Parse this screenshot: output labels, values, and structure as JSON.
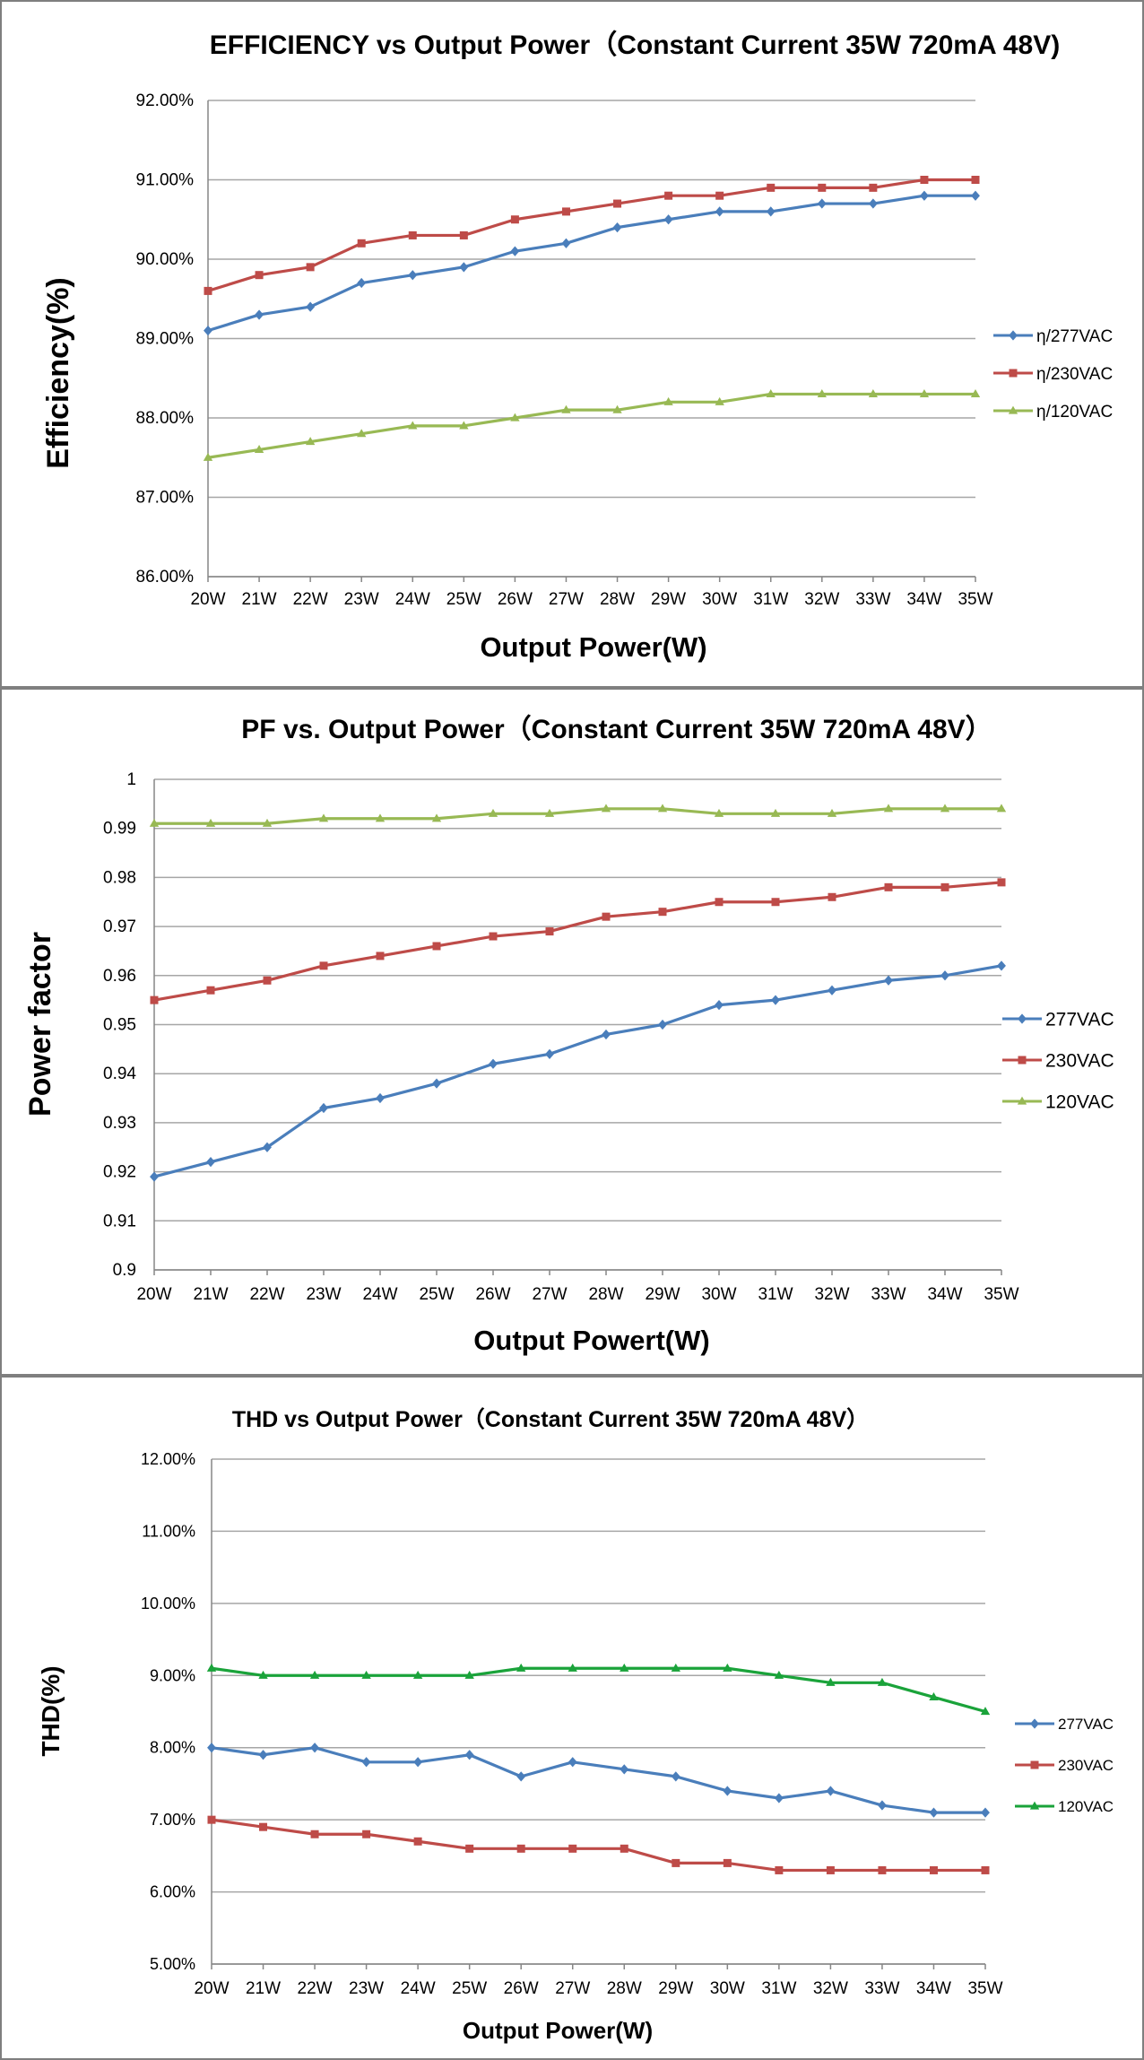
{
  "chart_data": [
    {
      "type": "line",
      "title": "EFFICIENCY vs Output Power（Constant Current 35W 720mA 48V)",
      "xlabel": "Output Power(W)",
      "ylabel": "Efficiency(%)",
      "categories": [
        "20W",
        "21W",
        "22W",
        "23W",
        "24W",
        "25W",
        "26W",
        "27W",
        "28W",
        "29W",
        "30W",
        "31W",
        "32W",
        "33W",
        "34W",
        "35W"
      ],
      "ylim": [
        86,
        92
      ],
      "yticks": [
        "86.00%",
        "87.00%",
        "88.00%",
        "89.00%",
        "90.00%",
        "91.00%",
        "92.00%"
      ],
      "grid": true,
      "legend_position": "right",
      "series": [
        {
          "name": "η/277VAC",
          "color": "#4a7ebb",
          "marker": "diamond",
          "values": [
            89.1,
            89.3,
            89.4,
            89.7,
            89.8,
            89.9,
            90.1,
            90.2,
            90.4,
            90.5,
            90.6,
            90.6,
            90.7,
            90.7,
            90.8,
            90.8
          ]
        },
        {
          "name": "η/230VAC",
          "color": "#be4b48",
          "marker": "square",
          "values": [
            89.6,
            89.8,
            89.9,
            90.2,
            90.3,
            90.3,
            90.5,
            90.6,
            90.7,
            90.8,
            90.8,
            90.9,
            90.9,
            90.9,
            91.0,
            91.0
          ]
        },
        {
          "name": "η/120VAC",
          "color": "#98b954",
          "marker": "triangle",
          "values": [
            87.5,
            87.6,
            87.7,
            87.8,
            87.9,
            87.9,
            88.0,
            88.1,
            88.1,
            88.2,
            88.2,
            88.3,
            88.3,
            88.3,
            88.3,
            88.3
          ]
        }
      ]
    },
    {
      "type": "line",
      "title": "PF vs. Output Power（Constant Current 35W 720mA 48V）",
      "xlabel": "Output Powert(W)",
      "ylabel": "Power factor",
      "categories": [
        "20W",
        "21W",
        "22W",
        "23W",
        "24W",
        "25W",
        "26W",
        "27W",
        "28W",
        "29W",
        "30W",
        "31W",
        "32W",
        "33W",
        "34W",
        "35W"
      ],
      "ylim": [
        0.9,
        1
      ],
      "yticks": [
        "0.9",
        "0.91",
        "0.92",
        "0.93",
        "0.94",
        "0.95",
        "0.96",
        "0.97",
        "0.98",
        "0.99",
        "1"
      ],
      "grid": true,
      "legend_position": "right",
      "series": [
        {
          "name": "277VAC",
          "color": "#4a7ebb",
          "marker": "diamond",
          "values": [
            0.919,
            0.922,
            0.925,
            0.933,
            0.935,
            0.938,
            0.942,
            0.944,
            0.948,
            0.95,
            0.954,
            0.955,
            0.957,
            0.959,
            0.96,
            0.962
          ]
        },
        {
          "name": "230VAC",
          "color": "#be4b48",
          "marker": "square",
          "values": [
            0.955,
            0.957,
            0.959,
            0.962,
            0.964,
            0.966,
            0.968,
            0.969,
            0.972,
            0.973,
            0.975,
            0.975,
            0.976,
            0.978,
            0.978,
            0.979
          ]
        },
        {
          "name": "120VAC",
          "color": "#98b954",
          "marker": "triangle",
          "values": [
            0.991,
            0.991,
            0.991,
            0.992,
            0.992,
            0.992,
            0.993,
            0.993,
            0.994,
            0.994,
            0.993,
            0.993,
            0.993,
            0.994,
            0.994,
            0.994
          ]
        }
      ]
    },
    {
      "type": "line",
      "title": "THD vs Output Power（Constant Current 35W  720mA 48V）",
      "xlabel": "Output Power(W)",
      "ylabel": "THD(%)",
      "categories": [
        "20W",
        "21W",
        "22W",
        "23W",
        "24W",
        "25W",
        "26W",
        "27W",
        "28W",
        "29W",
        "30W",
        "31W",
        "32W",
        "33W",
        "34W",
        "35W"
      ],
      "ylim": [
        5,
        12
      ],
      "yticks": [
        "5.00%",
        "6.00%",
        "7.00%",
        "8.00%",
        "9.00%",
        "10.00%",
        "11.00%",
        "12.00%"
      ],
      "grid": true,
      "legend_position": "right",
      "series": [
        {
          "name": "277VAC",
          "color": "#4a7ebb",
          "marker": "diamond",
          "values": [
            8.0,
            7.9,
            8.0,
            7.8,
            7.8,
            7.9,
            7.6,
            7.8,
            7.7,
            7.6,
            7.4,
            7.3,
            7.4,
            7.2,
            7.1,
            7.1
          ]
        },
        {
          "name": "230VAC",
          "color": "#be4b48",
          "marker": "square",
          "values": [
            7.0,
            6.9,
            6.8,
            6.8,
            6.7,
            6.6,
            6.6,
            6.6,
            6.6,
            6.4,
            6.4,
            6.3,
            6.3,
            6.3,
            6.3,
            6.3
          ]
        },
        {
          "name": "120VAC",
          "color": "#1aa33a",
          "marker": "triangle",
          "values": [
            9.1,
            9.0,
            9.0,
            9.0,
            9.0,
            9.0,
            9.1,
            9.1,
            9.1,
            9.1,
            9.1,
            9.0,
            8.9,
            8.9,
            8.7,
            8.5
          ]
        }
      ]
    }
  ]
}
